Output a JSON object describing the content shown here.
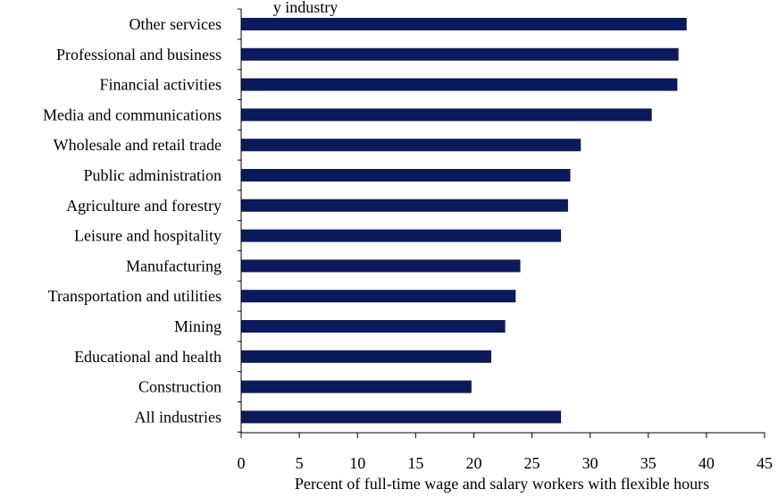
{
  "chart_data": {
    "type": "bar",
    "orientation": "horizontal",
    "title": "y industry",
    "xlabel": "Percent of full-time wage and salary workers with flexible hours",
    "ylabel": "",
    "xlim": [
      0,
      45
    ],
    "x_ticks": [
      "0",
      "5",
      "10",
      "15",
      "20",
      "25",
      "30",
      "35",
      "40",
      "45"
    ],
    "grid": false,
    "legend": "none",
    "bar_color": "#0a1a5a",
    "categories": [
      "Other services",
      "Professional and business",
      "Financial activities",
      "Media and communications",
      "Wholesale and retail trade",
      "Public administration",
      "Agriculture and forestry",
      "Leisure and hospitality",
      "Manufacturing",
      "Transportation and utilities",
      "Mining",
      "Educational and health",
      "Construction",
      "All industries"
    ],
    "values": [
      38.3,
      37.6,
      37.5,
      35.3,
      29.2,
      28.3,
      28.1,
      27.5,
      24.0,
      23.6,
      22.7,
      21.5,
      19.8,
      27.5
    ]
  }
}
